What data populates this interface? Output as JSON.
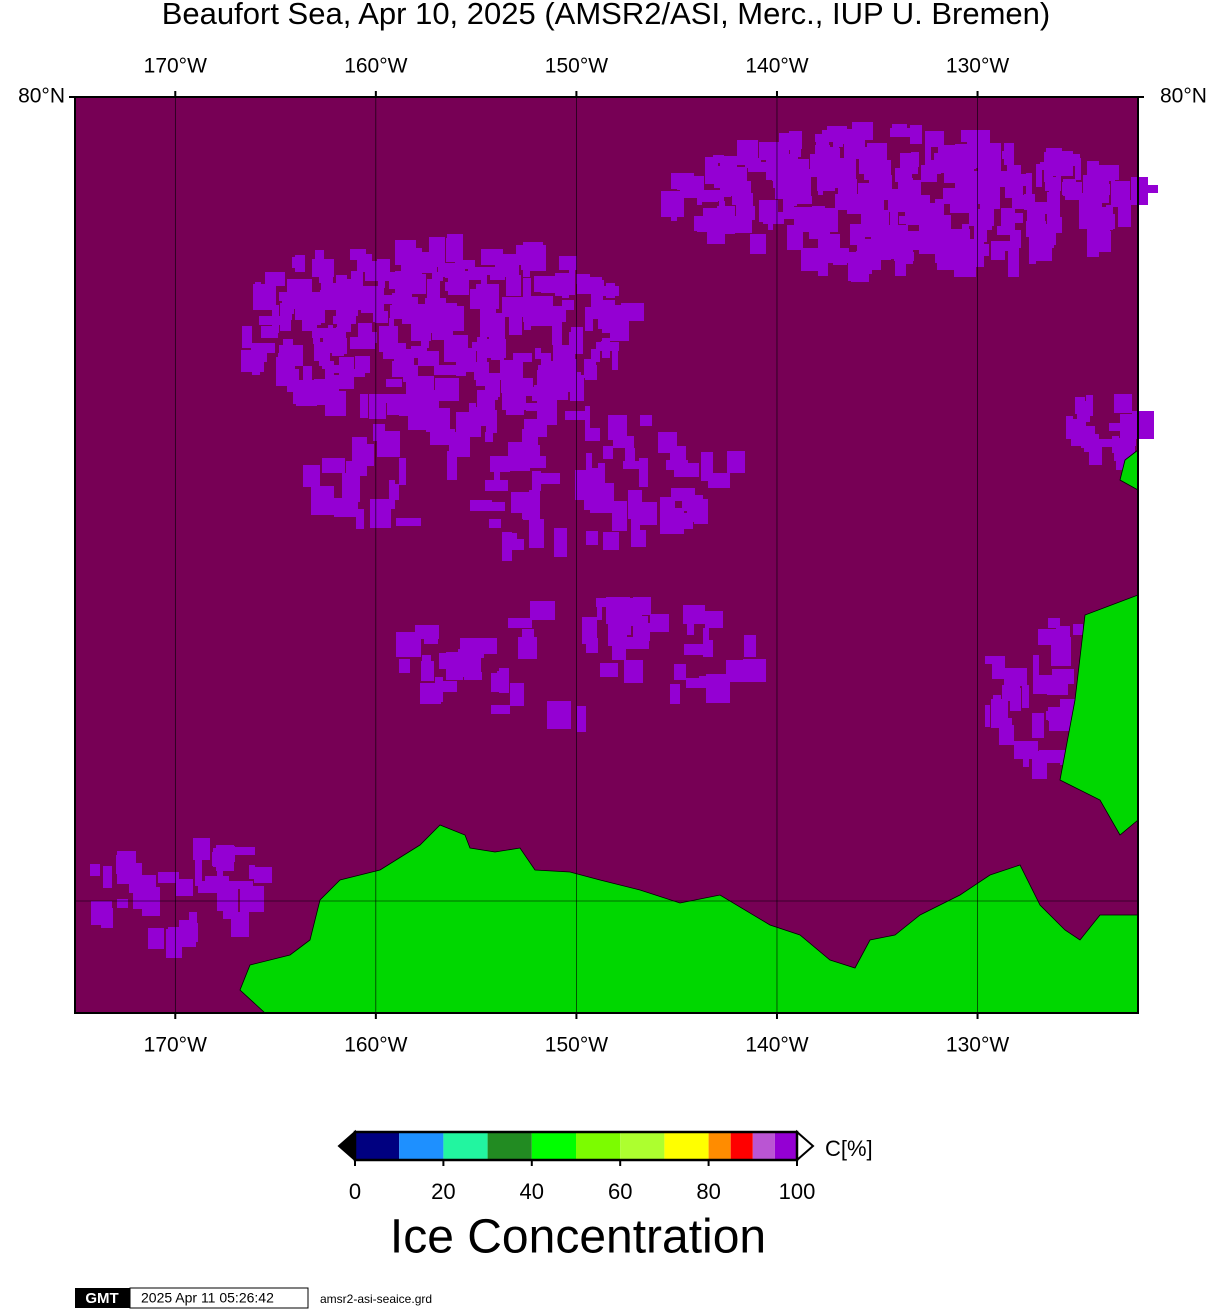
{
  "title": "Beaufort Sea, Apr 10, 2025 (AMSR2/ASI, Merc., IUP U. Bremen)",
  "map": {
    "xlim": [
      -175,
      -122
    ],
    "ylim": [
      68,
      80
    ],
    "xticks": [
      {
        "value": -170,
        "label": "170°W"
      },
      {
        "value": -160,
        "label": "160°W"
      },
      {
        "value": -150,
        "label": "150°W"
      },
      {
        "value": -140,
        "label": "140°W"
      },
      {
        "value": -130,
        "label": "130°W"
      }
    ],
    "yticks": [
      {
        "value": 80,
        "label": "80°N"
      }
    ],
    "ocean_color": "#770055",
    "ice_color": "#9400d3",
    "land_color": "#00d700"
  },
  "colorbar": {
    "bounds": [
      0,
      10,
      20,
      30,
      40,
      50,
      60,
      70,
      80,
      85,
      90,
      95,
      100
    ],
    "colors": [
      "#000080",
      "#1e90ff",
      "#22f5a0",
      "#228b22",
      "#00ff00",
      "#7cfc00",
      "#adff2f",
      "#ffff00",
      "#ff8c00",
      "#ff0000",
      "#ba55d3",
      "#9400d3"
    ],
    "ticks": [
      0,
      20,
      40,
      60,
      80,
      100
    ],
    "unit": "C[%]",
    "title": "Ice Concentration"
  },
  "footer": {
    "logo": "GMT",
    "timestamp": "2025 Apr 11 05:26:42",
    "file": "amsr2-asi-seaice.grd"
  }
}
